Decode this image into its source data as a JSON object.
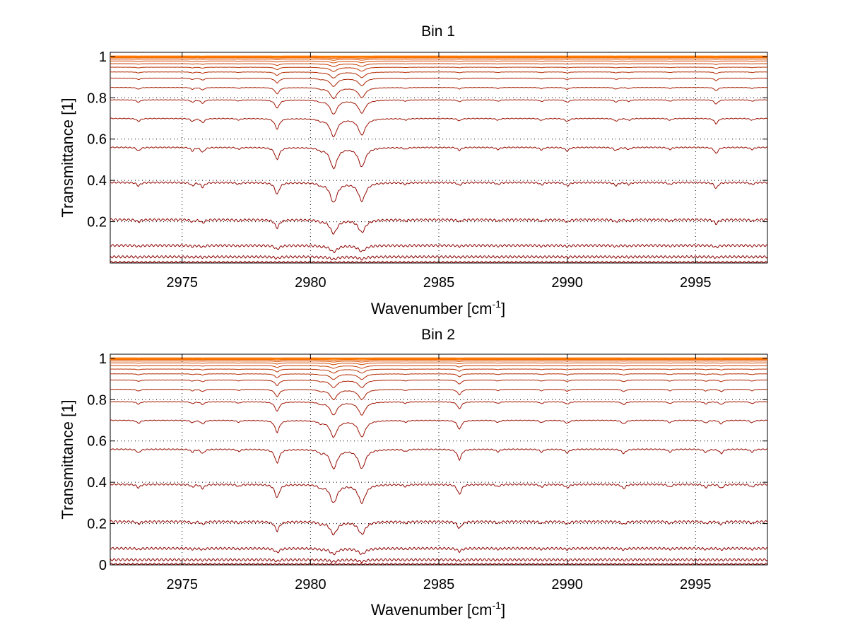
{
  "figure": {
    "background": "#ffffff"
  },
  "chart_data": [
    {
      "type": "line",
      "title": "Bin 1",
      "xlabel": "Wavenumber [cm",
      "xlabel_sup": "-1",
      "xlabel_end": "]",
      "ylabel": "Transmittance [1]",
      "xlim": [
        2972.2,
        2997.8
      ],
      "ylim": [
        0.0,
        1.02
      ],
      "xticks": [
        2975,
        2980,
        2985,
        2990,
        2995
      ],
      "xtick_labels": [
        "2975",
        "2980",
        "2985",
        "2990",
        "2995"
      ],
      "yticks": [
        0.2,
        0.4,
        0.6,
        0.8,
        1
      ],
      "ytick_labels": [
        "0.2",
        "0.4",
        "0.6",
        "0.8",
        "1"
      ],
      "grid": "dotted",
      "legend": "none",
      "line_color_dark": "#8b0000",
      "line_color_light": "#ff7800",
      "baselines": [
        0.003,
        0.03,
        0.085,
        0.21,
        0.39,
        0.56,
        0.7,
        0.79,
        0.85,
        0.895,
        0.925,
        0.948,
        0.965,
        0.978,
        0.987,
        0.993,
        0.997,
        0.999
      ],
      "absorption_lines": [
        {
          "position": 2973.3,
          "depth": 0.1,
          "width": 0.08
        },
        {
          "position": 2975.4,
          "depth": 0.1,
          "width": 0.07
        },
        {
          "position": 2975.8,
          "depth": 0.14,
          "width": 0.08
        },
        {
          "position": 2977.2,
          "depth": 0.05,
          "width": 0.08
        },
        {
          "position": 2978.7,
          "depth": 0.35,
          "width": 0.1
        },
        {
          "position": 2980.4,
          "depth": 0.06,
          "width": 0.1
        },
        {
          "position": 2980.9,
          "depth": 0.6,
          "width": 0.16
        },
        {
          "position": 2982.0,
          "depth": 0.55,
          "width": 0.16
        },
        {
          "position": 2983.7,
          "depth": 0.05,
          "width": 0.08
        },
        {
          "position": 2985.8,
          "depth": 0.08,
          "width": 0.08
        },
        {
          "position": 2987.3,
          "depth": 0.06,
          "width": 0.08
        },
        {
          "position": 2989.0,
          "depth": 0.07,
          "width": 0.08
        },
        {
          "position": 2990.0,
          "depth": 0.1,
          "width": 0.09
        },
        {
          "position": 2991.9,
          "depth": 0.09,
          "width": 0.09
        },
        {
          "position": 2992.4,
          "depth": 0.06,
          "width": 0.08
        },
        {
          "position": 2994.0,
          "depth": 0.06,
          "width": 0.08
        },
        {
          "position": 2995.8,
          "depth": 0.18,
          "width": 0.08
        },
        {
          "position": 2997.2,
          "depth": 0.06,
          "width": 0.08
        }
      ]
    },
    {
      "type": "line",
      "title": "Bin 2",
      "xlabel": "Wavenumber [cm",
      "xlabel_sup": "-1",
      "xlabel_end": "]",
      "ylabel": "Transmittance [1]",
      "xlim": [
        2972.2,
        2997.8
      ],
      "ylim": [
        0.0,
        1.02
      ],
      "xticks": [
        2975,
        2980,
        2985,
        2990,
        2995
      ],
      "xtick_labels": [
        "2975",
        "2980",
        "2985",
        "2990",
        "2995"
      ],
      "yticks": [
        0,
        0.2,
        0.4,
        0.6,
        0.8,
        1
      ],
      "ytick_labels": [
        "0",
        "0.2",
        "0.4",
        "0.6",
        "0.8",
        "1"
      ],
      "grid": "dotted",
      "legend": "none",
      "line_color_dark": "#8b0000",
      "line_color_light": "#ff7800",
      "baselines": [
        0.003,
        0.025,
        0.08,
        0.21,
        0.39,
        0.56,
        0.7,
        0.79,
        0.85,
        0.895,
        0.925,
        0.948,
        0.965,
        0.978,
        0.987,
        0.993,
        0.997,
        0.999
      ],
      "absorption_lines": [
        {
          "position": 2973.3,
          "depth": 0.1,
          "width": 0.08
        },
        {
          "position": 2975.4,
          "depth": 0.08,
          "width": 0.07
        },
        {
          "position": 2975.8,
          "depth": 0.12,
          "width": 0.08
        },
        {
          "position": 2977.2,
          "depth": 0.06,
          "width": 0.08
        },
        {
          "position": 2978.7,
          "depth": 0.4,
          "width": 0.1
        },
        {
          "position": 2980.4,
          "depth": 0.08,
          "width": 0.1
        },
        {
          "position": 2980.9,
          "depth": 0.55,
          "width": 0.16
        },
        {
          "position": 2982.0,
          "depth": 0.55,
          "width": 0.16
        },
        {
          "position": 2983.7,
          "depth": 0.06,
          "width": 0.08
        },
        {
          "position": 2985.8,
          "depth": 0.3,
          "width": 0.09
        },
        {
          "position": 2987.3,
          "depth": 0.07,
          "width": 0.08
        },
        {
          "position": 2989.0,
          "depth": 0.08,
          "width": 0.08
        },
        {
          "position": 2990.0,
          "depth": 0.1,
          "width": 0.09
        },
        {
          "position": 2992.2,
          "depth": 0.12,
          "width": 0.09
        },
        {
          "position": 2994.0,
          "depth": 0.08,
          "width": 0.08
        },
        {
          "position": 2995.4,
          "depth": 0.09,
          "width": 0.08
        },
        {
          "position": 2996.0,
          "depth": 0.12,
          "width": 0.08
        },
        {
          "position": 2997.2,
          "depth": 0.08,
          "width": 0.08
        }
      ]
    }
  ]
}
